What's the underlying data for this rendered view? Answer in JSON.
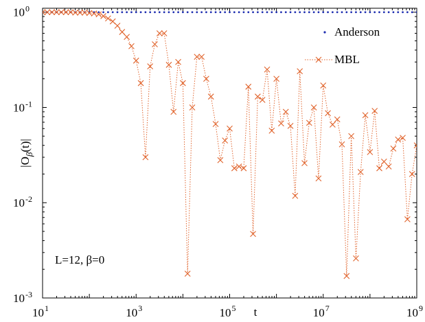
{
  "chart_data": {
    "type": "line",
    "xlabel": "t",
    "ylabel_main": "|O",
    "ylabel_sub": "β",
    "ylabel_tail": "(t)|",
    "x_scale": "log",
    "y_scale": "log",
    "xlim": [
      10,
      1000000000
    ],
    "ylim": [
      0.001,
      1.1
    ],
    "x_ticks": [
      {
        "value": 10,
        "base": "10",
        "exp": "1"
      },
      {
        "value": 1000,
        "base": "10",
        "exp": "3"
      },
      {
        "value": 100000,
        "base": "10",
        "exp": "5"
      },
      {
        "value": 10000000,
        "base": "10",
        "exp": "7"
      },
      {
        "value": 1000000000,
        "base": "10",
        "exp": "9"
      }
    ],
    "y_ticks": [
      {
        "value": 1,
        "base": "10",
        "exp": "0"
      },
      {
        "value": 0.1,
        "base": "10",
        "exp": "-1"
      },
      {
        "value": 0.01,
        "base": "10",
        "exp": "-2"
      },
      {
        "value": 0.001,
        "base": "10",
        "exp": "-3"
      }
    ],
    "annotation": "L=12, β=0",
    "legend": {
      "position": "top-right"
    },
    "series": [
      {
        "name": "Anderson",
        "color": "#1f2fb0",
        "marker": "dot",
        "x": [
          10,
          12.59,
          15.85,
          19.95,
          25.12,
          31.62,
          39.81,
          50.12,
          63.1,
          79.43,
          100,
          125.9,
          158.5,
          199.5,
          251.2,
          316.2,
          398.1,
          501.2,
          631,
          794.3,
          1000,
          1259,
          1585,
          1995,
          2512,
          3162,
          3981,
          5012,
          6310,
          7943,
          10000,
          12590,
          15850,
          19950,
          25120,
          31620,
          39810,
          50120,
          63100,
          79430,
          100000,
          125900,
          158500,
          199500,
          251200,
          316200,
          398100,
          501200,
          631000,
          794300,
          1000000,
          1259000,
          1585000,
          1995000,
          2512000,
          3162000,
          3981000,
          5012000,
          6310000,
          7943000,
          10000000,
          12590000,
          15850000,
          19950000,
          25120000,
          31620000,
          39810000,
          50120000,
          63100000,
          79430000,
          100000000,
          125900000,
          158500000,
          199500000,
          251200000,
          316200000,
          398100000,
          501200000,
          631000000,
          794300000,
          1000000000
        ],
        "y": [
          1,
          1,
          1,
          1,
          1,
          1,
          1,
          1,
          1,
          1,
          1,
          1,
          1,
          1,
          1,
          1,
          1,
          1,
          1,
          1,
          1,
          1,
          1,
          1,
          1,
          1,
          1,
          1,
          1,
          1,
          1,
          1,
          1,
          1,
          1,
          1,
          1,
          1,
          1,
          1,
          1,
          1,
          1,
          1,
          1,
          1,
          1,
          1,
          1,
          1,
          1,
          1,
          1,
          1,
          1,
          1,
          1,
          1,
          1,
          1,
          1,
          1,
          1,
          1,
          1,
          1,
          1,
          1,
          1,
          1,
          1,
          1,
          1,
          1,
          1,
          1,
          1,
          1,
          1,
          1,
          1
        ]
      },
      {
        "name": "MBL",
        "color": "#e0622a",
        "marker": "x",
        "x": [
          10,
          12.59,
          15.85,
          19.95,
          25.12,
          31.62,
          39.81,
          50.12,
          63.1,
          79.43,
          100,
          125.9,
          158.5,
          199.5,
          251.2,
          316.2,
          398.1,
          501.2,
          631,
          794.3,
          1000,
          1259,
          1585,
          1995,
          2512,
          3162,
          3981,
          5012,
          6310,
          7943,
          10000,
          12590,
          15850,
          19950,
          25120,
          31620,
          39810,
          50120,
          63100,
          79430,
          100000,
          125900,
          158500,
          199500,
          251200,
          316200,
          398100,
          501200,
          631000,
          794300,
          1000000,
          1259000,
          1585000,
          1995000,
          2512000,
          3162000,
          3981000,
          5012000,
          6310000,
          7943000,
          10000000,
          12590000,
          15850000,
          19950000,
          25120000,
          31620000,
          39810000,
          50120000,
          63100000,
          79430000,
          100000000,
          125900000,
          158500000,
          199500000,
          251200000,
          316200000,
          398100000,
          501200000,
          631000000,
          794300000,
          1000000000
        ],
        "y": [
          1.0,
          1.0,
          1.0,
          1.0,
          1.0,
          1.0,
          1.0,
          0.99,
          0.99,
          0.99,
          0.98,
          0.97,
          0.95,
          0.91,
          0.86,
          0.8,
          0.72,
          0.62,
          0.55,
          0.44,
          0.31,
          0.18,
          0.03,
          0.27,
          0.46,
          0.6,
          0.6,
          0.28,
          0.09,
          0.3,
          0.18,
          0.0018,
          0.1,
          0.34,
          0.34,
          0.2,
          0.13,
          0.067,
          0.028,
          0.045,
          0.06,
          0.023,
          0.024,
          0.023,
          0.165,
          0.0047,
          0.13,
          0.12,
          0.25,
          0.057,
          0.2,
          0.068,
          0.09,
          0.064,
          0.0118,
          0.24,
          0.026,
          0.069,
          0.1,
          0.018,
          0.17,
          0.087,
          0.066,
          0.075,
          0.041,
          0.0017,
          0.05,
          0.0026,
          0.021,
          0.083,
          0.034,
          0.092,
          0.023,
          0.027,
          0.024,
          0.037,
          0.046,
          0.048,
          0.0067,
          0.02,
          0.04
        ]
      }
    ]
  }
}
